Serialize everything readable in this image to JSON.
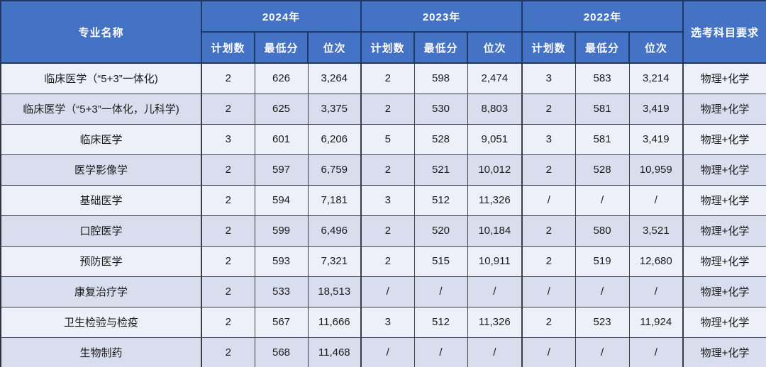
{
  "colors": {
    "header_bg": "#4472C4",
    "header_text": "#FFFFFF",
    "header_border": "#1F3864",
    "row_light": "#EDF0F8",
    "row_dark": "#D9DEEF",
    "body_border": "#3A3E49",
    "body_text": "#1B1B1B"
  },
  "chart_data": {
    "type": "table",
    "header": {
      "major": "专业名称",
      "subject": "选考科目要求",
      "year_groups": [
        "2024年",
        "2023年",
        "2022年"
      ],
      "sub_columns": [
        "计划数",
        "最低分",
        "位次"
      ]
    },
    "rows": [
      {
        "major": "临床医学（“5+3”一体化)",
        "values": [
          "2",
          "626",
          "3,264",
          "2",
          "598",
          "2,474",
          "3",
          "583",
          "3,214"
        ],
        "subject": "物理+化学"
      },
      {
        "major": "临床医学（“5+3”一体化，儿科学)",
        "values": [
          "2",
          "625",
          "3,375",
          "2",
          "530",
          "8,803",
          "2",
          "581",
          "3,419"
        ],
        "subject": "物理+化学"
      },
      {
        "major": "临床医学",
        "values": [
          "3",
          "601",
          "6,206",
          "5",
          "528",
          "9,051",
          "3",
          "581",
          "3,419"
        ],
        "subject": "物理+化学"
      },
      {
        "major": "医学影像学",
        "values": [
          "2",
          "597",
          "6,759",
          "2",
          "521",
          "10,012",
          "2",
          "528",
          "10,959"
        ],
        "subject": "物理+化学"
      },
      {
        "major": "基础医学",
        "values": [
          "2",
          "594",
          "7,181",
          "3",
          "512",
          "11,326",
          "/",
          "/",
          "/"
        ],
        "subject": "物理+化学"
      },
      {
        "major": "口腔医学",
        "values": [
          "2",
          "599",
          "6,496",
          "2",
          "520",
          "10,184",
          "2",
          "580",
          "3,521"
        ],
        "subject": "物理+化学"
      },
      {
        "major": "预防医学",
        "values": [
          "2",
          "593",
          "7,321",
          "2",
          "515",
          "10,911",
          "2",
          "519",
          "12,680"
        ],
        "subject": "物理+化学"
      },
      {
        "major": "康复治疗学",
        "values": [
          "2",
          "533",
          "18,513",
          "/",
          "/",
          "/",
          "/",
          "/",
          "/"
        ],
        "subject": "物理+化学"
      },
      {
        "major": "卫生检验与检疫",
        "values": [
          "2",
          "567",
          "11,666",
          "3",
          "512",
          "11,326",
          "2",
          "523",
          "11,924"
        ],
        "subject": "物理+化学"
      },
      {
        "major": "生物制药",
        "values": [
          "2",
          "568",
          "11,468",
          "/",
          "/",
          "/",
          "/",
          "/",
          "/"
        ],
        "subject": "物理+化学"
      }
    ]
  }
}
